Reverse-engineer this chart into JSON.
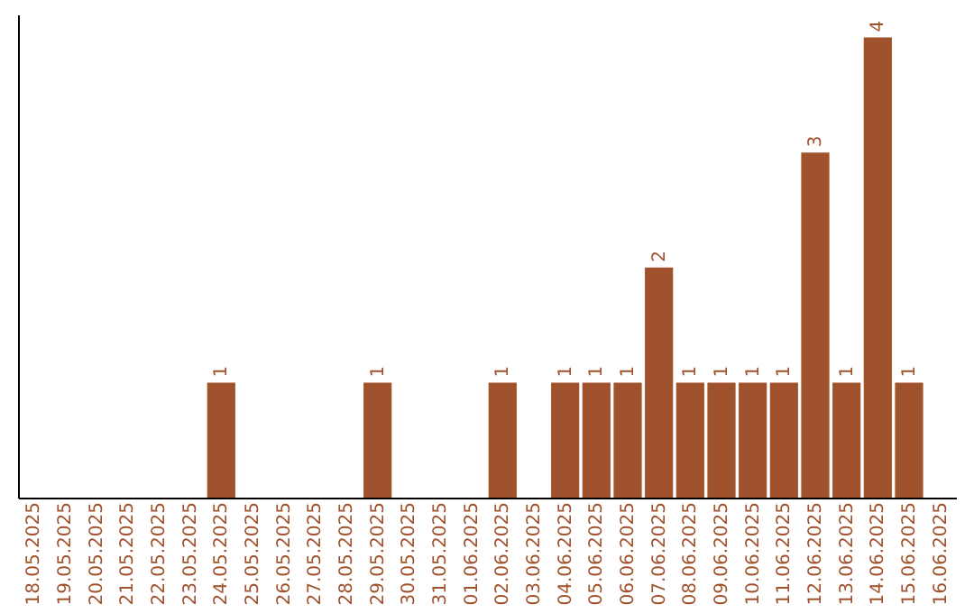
{
  "chart_data": {
    "type": "bar",
    "categories": [
      "18.05.2025",
      "19.05.2025",
      "20.05.2025",
      "21.05.2025",
      "22.05.2025",
      "23.05.2025",
      "24.05.2025",
      "25.05.2025",
      "26.05.2025",
      "27.05.2025",
      "28.05.2025",
      "29.05.2025",
      "30.05.2025",
      "31.05.2025",
      "01.06.2025",
      "02.06.2025",
      "03.06.2025",
      "04.06.2025",
      "05.06.2025",
      "06.06.2025",
      "07.06.2025",
      "08.06.2025",
      "09.06.2025",
      "10.06.2025",
      "11.06.2025",
      "12.06.2025",
      "13.06.2025",
      "14.06.2025",
      "15.06.2025",
      "16.06.2025"
    ],
    "values": [
      0,
      0,
      0,
      0,
      0,
      0,
      1,
      0,
      0,
      0,
      0,
      1,
      0,
      0,
      0,
      1,
      0,
      1,
      1,
      1,
      2,
      1,
      1,
      1,
      1,
      3,
      1,
      4,
      1,
      0
    ],
    "value_labels": [
      null,
      null,
      null,
      null,
      null,
      null,
      "1",
      null,
      null,
      null,
      null,
      "1",
      null,
      null,
      null,
      "1",
      null,
      "1",
      "1",
      "1",
      "2",
      "1",
      "1",
      "1",
      "1",
      "3",
      "1",
      "4",
      "1",
      null
    ],
    "color": "#a0522d",
    "ylim": [
      0,
      4.2
    ],
    "tick_labels": "x",
    "grid": false
  }
}
